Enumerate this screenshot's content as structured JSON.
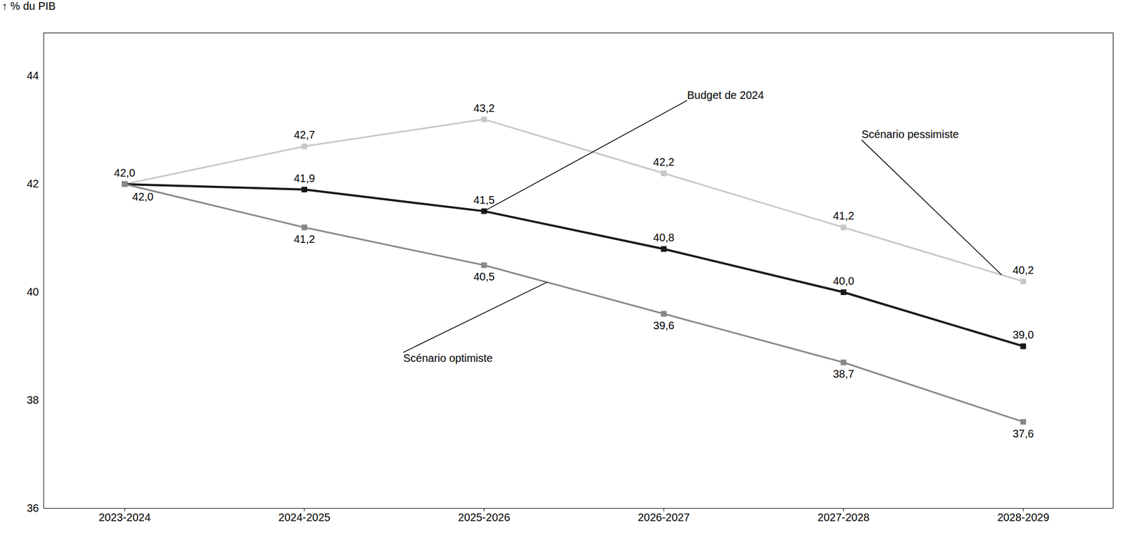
{
  "chart_data": {
    "type": "line",
    "categories": [
      "2023-2024",
      "2024-2025",
      "2025-2026",
      "2026-2027",
      "2027-2028",
      "2028-2029"
    ],
    "series": [
      {
        "name": "Scénario pessimiste",
        "color": "#c8c8c8",
        "marker": "square",
        "values": [
          42.0,
          42.7,
          43.2,
          42.2,
          41.2,
          40.2
        ],
        "value_labels": [
          "42,0",
          "42,7",
          "43,2",
          "42,2",
          "41,2",
          "40,2"
        ]
      },
      {
        "name": "Budget de 2024",
        "color": "#1a1a1a",
        "marker": "square",
        "values": [
          42.0,
          41.9,
          41.5,
          40.8,
          40.0,
          39.0
        ],
        "value_labels": [
          "42,0",
          "41,9",
          "41,5",
          "40,8",
          "40,0",
          "39,0"
        ]
      },
      {
        "name": "Scénario optimiste",
        "color": "#888888",
        "marker": "square",
        "values": [
          42.0,
          41.2,
          40.5,
          39.6,
          38.7,
          37.6
        ],
        "value_labels": [
          null,
          "41,2",
          "40,5",
          "39,6",
          "38,7",
          "37,6"
        ]
      }
    ],
    "ylabel": "% du PIB",
    "ylim": [
      36,
      44.8
    ],
    "yticks": [
      36,
      38,
      40,
      42,
      44
    ],
    "grid": false,
    "data_labels": true
  }
}
